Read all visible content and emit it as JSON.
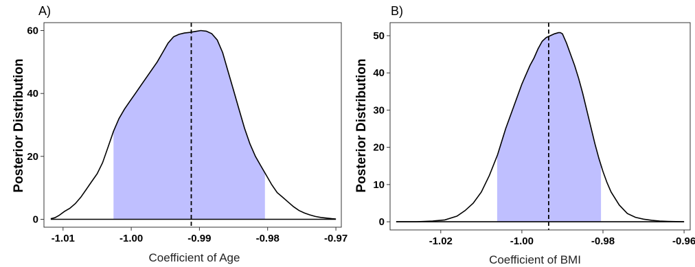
{
  "shade_color": "#bfbfff",
  "line_color": "#000000",
  "chart_data": [
    {
      "type": "area",
      "panel_label": "A)",
      "xlabel": "Coefficient of Age",
      "ylabel": "Posterior Distribution",
      "xlim": [
        -1.0128,
        -0.9692
      ],
      "ylim": [
        -2.5,
        62.5
      ],
      "xticks": [
        -1.01,
        -1.0,
        -0.99,
        -0.98,
        -0.97
      ],
      "xtick_labels": [
        "-1.01",
        "-1.00",
        "-0.99",
        "-0.98",
        "-0.97"
      ],
      "yticks": [
        0,
        20,
        40,
        60
      ],
      "ytick_labels": [
        "0",
        "20",
        "40",
        "60"
      ],
      "shaded_interval": [
        -1.0026,
        -0.9804
      ],
      "mean_line_x": -0.9912,
      "x": [
        -1.0118,
        -1.0112,
        -1.0106,
        -1.0098,
        -1.009,
        -1.0082,
        -1.0074,
        -1.0066,
        -1.0058,
        -1.005,
        -1.0042,
        -1.0034,
        -1.0026,
        -1.0018,
        -1.001,
        -1.0002,
        -0.9994,
        -0.9986,
        -0.9978,
        -0.997,
        -0.9962,
        -0.9954,
        -0.9946,
        -0.9938,
        -0.993,
        -0.9922,
        -0.9914,
        -0.9906,
        -0.9898,
        -0.989,
        -0.9882,
        -0.9874,
        -0.9866,
        -0.9858,
        -0.985,
        -0.9842,
        -0.9834,
        -0.9826,
        -0.9818,
        -0.981,
        -0.9802,
        -0.9794,
        -0.9786,
        -0.9778,
        -0.977,
        -0.9762,
        -0.9754,
        -0.9746,
        -0.9738,
        -0.973,
        -0.9722,
        -0.9714,
        -0.9706,
        -0.97
      ],
      "y": [
        0.2,
        0.5,
        1.2,
        2.5,
        3.5,
        5,
        7,
        9.5,
        12,
        14.5,
        18,
        23,
        28,
        32,
        35,
        37.5,
        40,
        42.5,
        45,
        47.5,
        50,
        53,
        56,
        58,
        58.8,
        59.2,
        59.4,
        59.7,
        60,
        59.8,
        59,
        57,
        53,
        47,
        41,
        35,
        29,
        24,
        20,
        17,
        14,
        11,
        8.5,
        7,
        5.5,
        4,
        2.8,
        2,
        1.4,
        0.9,
        0.6,
        0.4,
        0.2,
        0.1
      ]
    },
    {
      "type": "area",
      "panel_label": "B)",
      "xlabel": "Coefficient of BMI",
      "ylabel": "Posterior Distribution",
      "xlim": [
        -1.0325,
        -0.9585
      ],
      "ylim": [
        -2.2,
        53.5
      ],
      "xticks": [
        -1.02,
        -1.0,
        -0.98,
        -0.96
      ],
      "xtick_labels": [
        "-1.02",
        "-1.00",
        "-0.98",
        "-0.96"
      ],
      "yticks": [
        0,
        10,
        20,
        30,
        40,
        50
      ],
      "ytick_labels": [
        "0",
        "10",
        "20",
        "30",
        "40",
        "50"
      ],
      "shaded_interval": [
        -1.0061,
        -0.9805
      ],
      "mean_line_x": -0.9934,
      "x": [
        -1.031,
        -1.026,
        -1.022,
        -1.019,
        -1.016,
        -1.014,
        -1.012,
        -1.01,
        -1.008,
        -1.006,
        -1.004,
        -1.002,
        -1.0,
        -0.999,
        -0.998,
        -0.997,
        -0.996,
        -0.995,
        -0.994,
        -0.993,
        -0.992,
        -0.991,
        -0.9905,
        -0.99,
        -0.989,
        -0.988,
        -0.987,
        -0.986,
        -0.985,
        -0.984,
        -0.983,
        -0.982,
        -0.981,
        -0.98,
        -0.979,
        -0.978,
        -0.976,
        -0.974,
        -0.972,
        -0.97,
        -0.968,
        -0.966,
        -0.964,
        -0.962,
        -0.96
      ],
      "y": [
        0,
        0,
        0.2,
        0.5,
        1.5,
        3,
        5,
        8,
        12.5,
        18,
        25,
        31,
        37,
        39.5,
        42,
        44,
        46.5,
        48.5,
        49.5,
        50,
        50.5,
        50.8,
        50.8,
        50.5,
        48,
        45,
        42,
        38.5,
        34.5,
        30,
        25.5,
        21,
        17,
        13.5,
        10.5,
        8,
        4.5,
        2.2,
        1.2,
        0.7,
        0.4,
        0.2,
        0.1,
        0.05,
        0
      ]
    }
  ]
}
